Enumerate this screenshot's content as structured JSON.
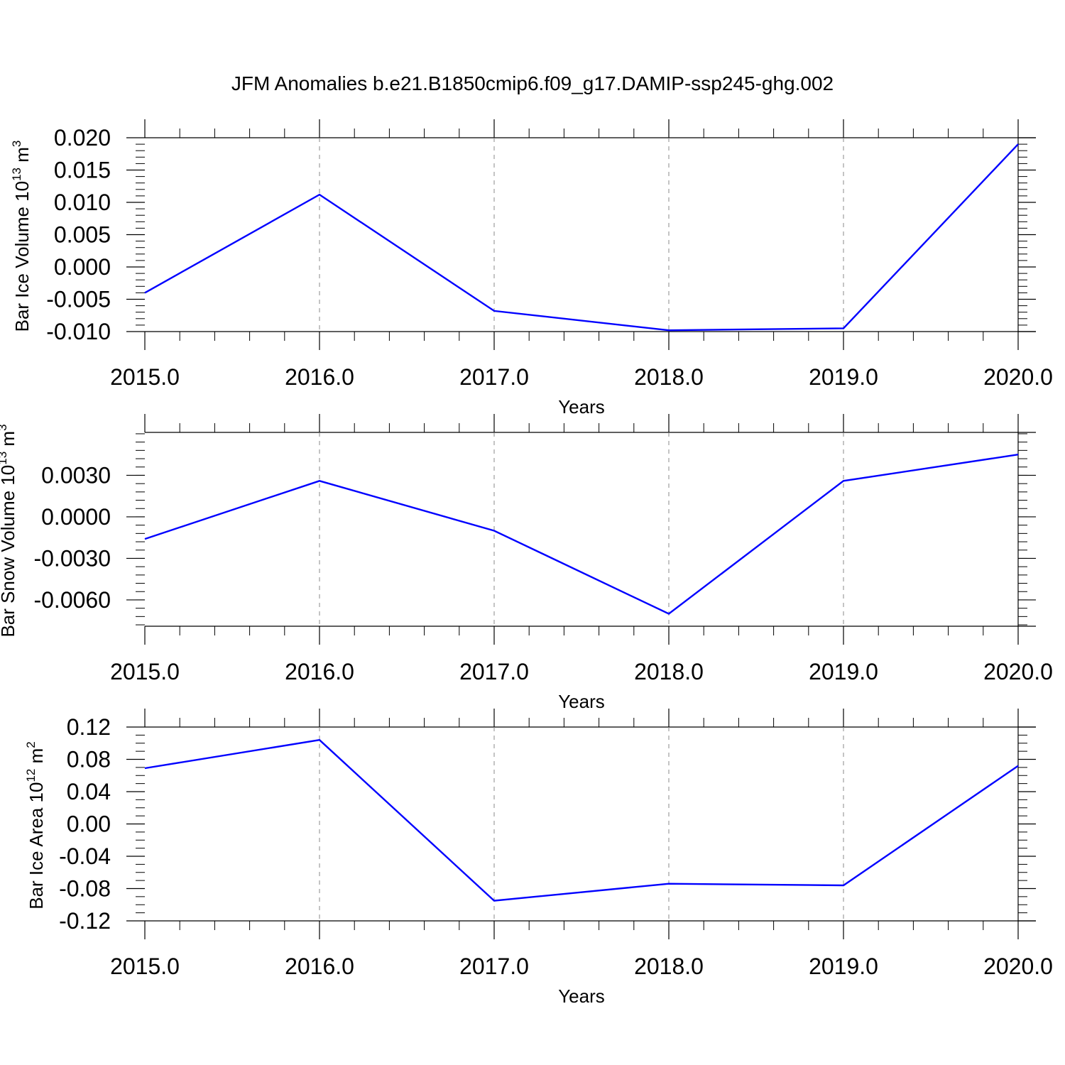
{
  "title": "JFM Anomalies b.e21.B1850cmip6.f09_g17.DAMIP-ssp245-ghg.002",
  "line_color": "#0000ff",
  "chart_data": [
    {
      "type": "line",
      "ylabel": "Bar Ice Volume 10",
      "ylabel_exp": "13",
      "ylabel_unit": " m",
      "ylabel_unit_exp": "3",
      "xlabel": "Years",
      "x": [
        2015,
        2016,
        2017,
        2018,
        2019,
        2020
      ],
      "values": [
        -0.004,
        0.0112,
        -0.0068,
        -0.0098,
        -0.0095,
        0.019
      ],
      "xlim": [
        2015,
        2020
      ],
      "ylim": [
        -0.01,
        0.02
      ],
      "yticks": [
        "-0.010",
        "-0.005",
        "0.000",
        "0.005",
        "0.010",
        "0.015",
        "0.020"
      ],
      "xticks": [
        "2015.0",
        "2016.0",
        "2017.0",
        "2018.0",
        "2019.0",
        "2020.0"
      ],
      "grid": "vertical dashed at major x ticks"
    },
    {
      "type": "line",
      "ylabel": "Bar Snow Volume 10",
      "ylabel_exp": "13",
      "ylabel_unit": " m",
      "ylabel_unit_exp": "3",
      "xlabel": "Years",
      "x": [
        2015,
        2016,
        2017,
        2018,
        2019,
        2020
      ],
      "values": [
        -0.0016,
        0.0026,
        -0.001,
        -0.007,
        0.0026,
        0.0045
      ],
      "xlim": [
        2015,
        2020
      ],
      "ylim": [
        -0.0079,
        0.0061
      ],
      "yticks": [
        "-0.0060",
        "-0.0030",
        "0.0000",
        "0.0030"
      ],
      "xticks": [
        "2015.0",
        "2016.0",
        "2017.0",
        "2018.0",
        "2019.0",
        "2020.0"
      ],
      "grid": "vertical dashed at major x ticks"
    },
    {
      "type": "line",
      "ylabel": "Bar Ice Area 10",
      "ylabel_exp": "12",
      "ylabel_unit": " m",
      "ylabel_unit_exp": "2",
      "xlabel": "Years",
      "x": [
        2015,
        2016,
        2017,
        2018,
        2019,
        2020
      ],
      "values": [
        0.069,
        0.104,
        -0.095,
        -0.074,
        -0.076,
        0.072
      ],
      "xlim": [
        2015,
        2020
      ],
      "ylim": [
        -0.12,
        0.12
      ],
      "yticks": [
        "-0.12",
        "-0.08",
        "-0.04",
        "0.00",
        "0.04",
        "0.08",
        "0.12"
      ],
      "xticks": [
        "2015.0",
        "2016.0",
        "2017.0",
        "2018.0",
        "2019.0",
        "2020.0"
      ],
      "grid": "vertical dashed at major x ticks"
    }
  ]
}
